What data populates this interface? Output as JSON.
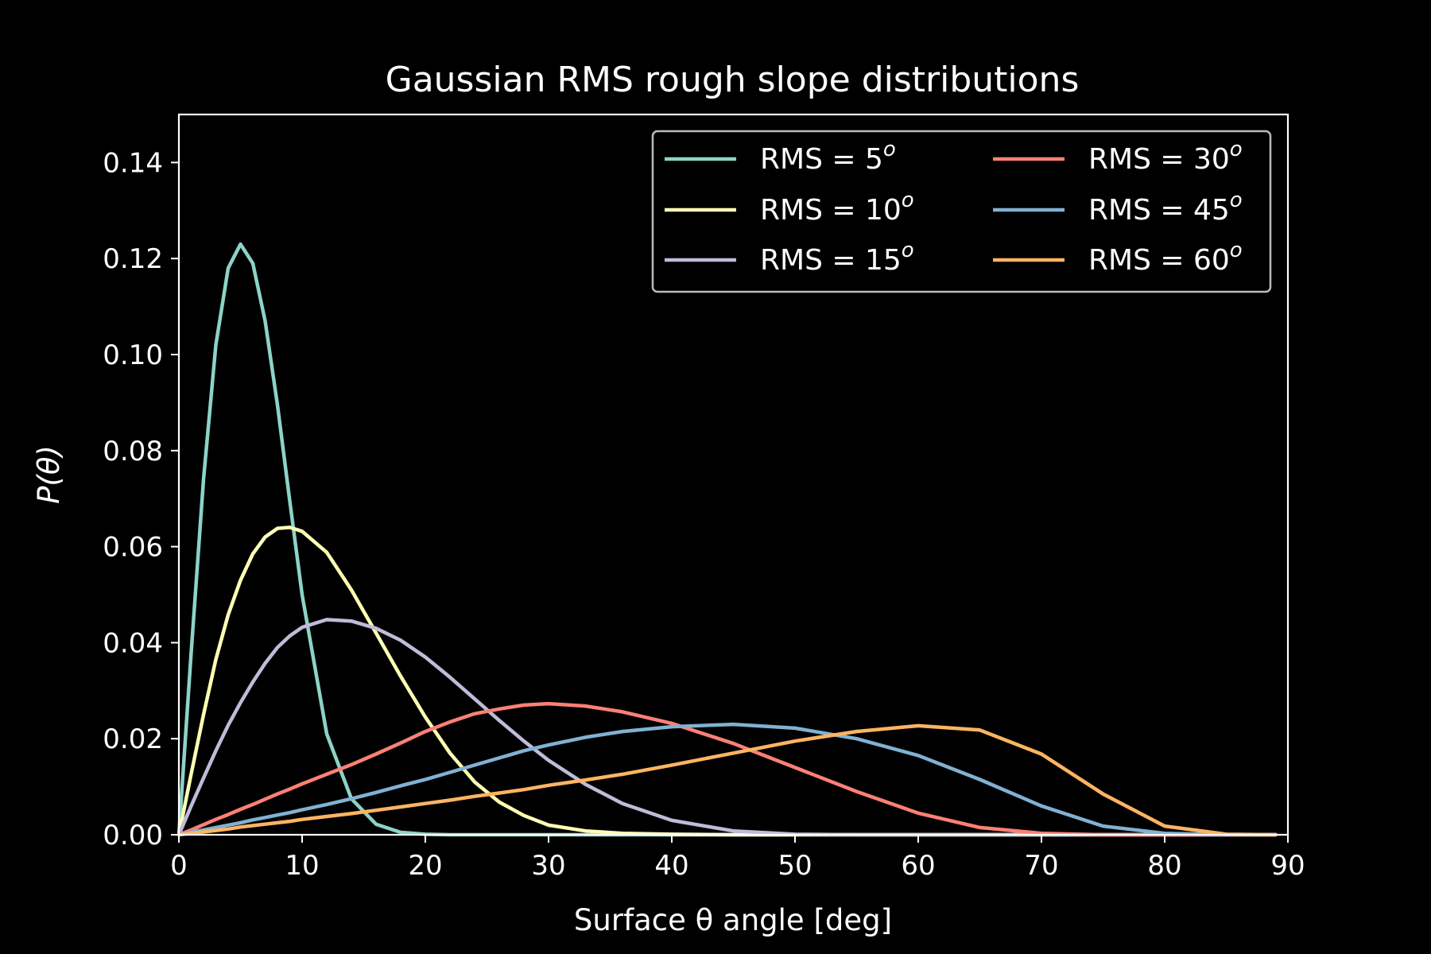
{
  "chart_data": {
    "type": "line",
    "title": "Gaussian RMS rough slope distributions",
    "xlabel": "Surface θ angle [deg]",
    "ylabel": "P(θ)",
    "xlim": [
      0,
      90
    ],
    "ylim": [
      0,
      0.15
    ],
    "xticks": [
      0,
      10,
      20,
      30,
      40,
      50,
      60,
      70,
      80,
      90
    ],
    "yticks": [
      0.0,
      0.02,
      0.04,
      0.06,
      0.08,
      0.1,
      0.12,
      0.14
    ],
    "xtick_labels": [
      "0",
      "10",
      "20",
      "30",
      "40",
      "50",
      "60",
      "70",
      "80",
      "90"
    ],
    "ytick_labels": [
      "0.00",
      "0.02",
      "0.04",
      "0.06",
      "0.08",
      "0.10",
      "0.12",
      "0.14"
    ],
    "grid": false,
    "legend_position": "top-right",
    "legend_columns": 2,
    "series": [
      {
        "name": "RMS = 5",
        "rms_deg": 5,
        "color": "#8dd3c7"
      },
      {
        "name": "RMS = 10",
        "rms_deg": 10,
        "color": "#feffb3"
      },
      {
        "name": "RMS = 15",
        "rms_deg": 15,
        "color": "#bfbbd9"
      },
      {
        "name": "RMS = 30",
        "rms_deg": 30,
        "color": "#fa8174"
      },
      {
        "name": "RMS = 45",
        "rms_deg": 45,
        "color": "#81b1d2"
      },
      {
        "name": "RMS = 60",
        "rms_deg": 60,
        "color": "#fdb462"
      }
    ],
    "x": [
      0,
      1,
      2,
      3,
      4,
      5,
      6,
      7,
      8,
      9,
      10,
      12,
      14,
      16,
      18,
      20,
      22,
      24,
      26,
      28,
      30,
      33,
      36,
      40,
      45,
      50,
      55,
      60,
      65,
      70,
      75,
      80,
      85,
      89
    ],
    "series_values": [
      [
        0,
        0.038,
        0.074,
        0.102,
        0.118,
        0.123,
        0.119,
        0.107,
        0.0895,
        0.0695,
        0.05,
        0.021,
        0.0075,
        0.0022,
        0.0005,
        0.0001,
        0,
        0,
        0,
        0,
        0,
        0,
        0,
        0,
        0,
        0,
        0,
        0,
        0,
        0,
        0,
        0,
        0,
        0
      ],
      [
        0,
        0.0127,
        0.025,
        0.0365,
        0.0458,
        0.053,
        0.0585,
        0.062,
        0.0638,
        0.064,
        0.0632,
        0.0588,
        0.051,
        0.042,
        0.033,
        0.0245,
        0.017,
        0.011,
        0.0068,
        0.004,
        0.002,
        0.0008,
        0.0003,
        0.0001,
        0,
        0,
        0,
        0,
        0,
        0,
        0,
        0,
        0,
        0
      ],
      [
        0,
        0.006,
        0.0118,
        0.0175,
        0.0228,
        0.0275,
        0.0318,
        0.0357,
        0.039,
        0.0414,
        0.0432,
        0.0448,
        0.0445,
        0.043,
        0.0405,
        0.037,
        0.0328,
        0.0283,
        0.0238,
        0.0195,
        0.0155,
        0.0105,
        0.0065,
        0.003,
        0.0008,
        0.0001,
        0,
        0,
        0,
        0,
        0,
        0,
        0,
        0
      ],
      [
        0,
        0.001,
        0.0021,
        0.0032,
        0.0042,
        0.0053,
        0.0063,
        0.0074,
        0.0085,
        0.0095,
        0.0106,
        0.0126,
        0.0146,
        0.0168,
        0.0191,
        0.0215,
        0.0235,
        0.0252,
        0.0262,
        0.027,
        0.0273,
        0.0268,
        0.0256,
        0.0232,
        0.019,
        0.014,
        0.009,
        0.0045,
        0.0015,
        0.0003,
        0,
        0,
        0,
        0
      ],
      [
        0,
        0.0005,
        0.001,
        0.0015,
        0.002,
        0.0025,
        0.0031,
        0.0036,
        0.0041,
        0.0046,
        0.0052,
        0.0063,
        0.0075,
        0.0088,
        0.0102,
        0.0115,
        0.013,
        0.0145,
        0.016,
        0.0175,
        0.0187,
        0.0203,
        0.0215,
        0.0225,
        0.023,
        0.0222,
        0.02,
        0.0165,
        0.0115,
        0.006,
        0.0018,
        0.0003,
        0,
        0
      ],
      [
        0,
        0.0003,
        0.0006,
        0.0009,
        0.0012,
        0.0016,
        0.0019,
        0.0022,
        0.0025,
        0.0028,
        0.0032,
        0.0038,
        0.0044,
        0.0051,
        0.0058,
        0.0065,
        0.0072,
        0.008,
        0.0087,
        0.0094,
        0.0103,
        0.0114,
        0.0126,
        0.0145,
        0.017,
        0.0195,
        0.0215,
        0.0227,
        0.0218,
        0.0168,
        0.0085,
        0.0018,
        0.0001,
        0
      ]
    ]
  }
}
